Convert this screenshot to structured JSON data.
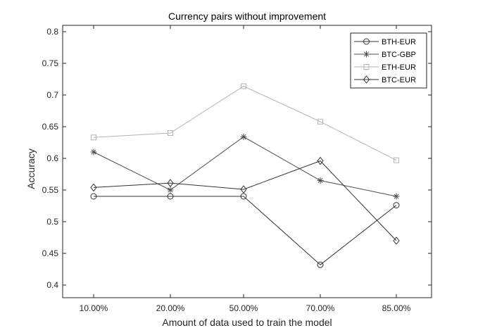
{
  "chart_data": {
    "type": "line",
    "title": "Currency pairs without improvement",
    "xlabel": "Amount of data used to train the model",
    "ylabel": "Accuracy",
    "categories": [
      "10.00%",
      "20.00%",
      "50.00%",
      "70.00%",
      "85.00%"
    ],
    "ylim": [
      0.38,
      0.81
    ],
    "yticks": [
      0.4,
      0.45,
      0.5,
      0.55,
      0.6,
      0.65,
      0.7,
      0.75,
      0.8
    ],
    "ytick_labels": [
      "0.4",
      "0.45",
      "0.5",
      "0.55",
      "0.6",
      "0.65",
      "0.7",
      "0.75",
      "0.8"
    ],
    "grid": false,
    "legend_position": "top-right",
    "series": [
      {
        "name": "BTH-EUR",
        "marker": "circle",
        "color": "#333333",
        "values": [
          0.54,
          0.54,
          0.54,
          0.432,
          0.526
        ]
      },
      {
        "name": "BTC-GBP",
        "marker": "asterisk",
        "color": "#4d4d4d",
        "values": [
          0.61,
          0.55,
          0.634,
          0.565,
          0.54
        ]
      },
      {
        "name": "ETH-EUR",
        "marker": "square",
        "color": "#b3b3b3",
        "values": [
          0.633,
          0.64,
          0.714,
          0.658,
          0.597
        ]
      },
      {
        "name": "BTC-EUR",
        "marker": "diamond",
        "color": "#333333",
        "values": [
          0.554,
          0.561,
          0.551,
          0.596,
          0.47
        ]
      }
    ]
  }
}
